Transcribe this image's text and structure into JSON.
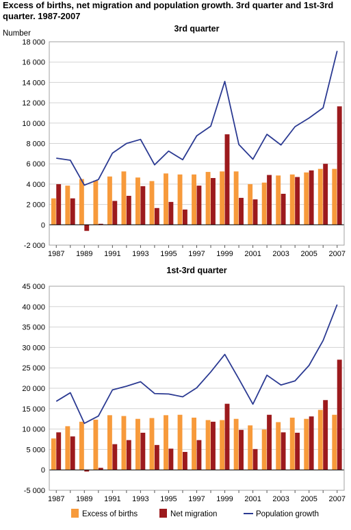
{
  "figure": {
    "title": "Excess of births, net migration and population growth. 3rd quarter and 1st-3rd quarter. 1987-2007",
    "colors": {
      "births": "#f79a3b",
      "migration": "#9c1a1d",
      "growth": "#2b3a92",
      "grid": "#d3d3d3",
      "plot_border": "#a0a0a0"
    }
  },
  "legend": {
    "placement": "bottom",
    "items": [
      {
        "key": "births",
        "label": "Excess of births"
      },
      {
        "key": "migration",
        "label": "Net migration"
      },
      {
        "key": "growth",
        "label": "Population growth"
      }
    ]
  },
  "chart_data": [
    {
      "type": "bar",
      "title": "3rd quarter",
      "ylabel": "Number",
      "ylim": [
        -2000,
        18000
      ],
      "yticks": [
        -2000,
        0,
        2000,
        4000,
        6000,
        8000,
        10000,
        12000,
        14000,
        16000,
        18000
      ],
      "ytick_labels": [
        "-2 000",
        "0",
        "2 000",
        "4 000",
        "6 000",
        "8 000",
        "10 000",
        "12 000",
        "14 000",
        "16 000",
        "18 000"
      ],
      "grid": true,
      "categories": [
        "1987",
        "1988",
        "1989",
        "1990",
        "1991",
        "1992",
        "1993",
        "1994",
        "1995",
        "1996",
        "1997",
        "1998",
        "1999",
        "2000",
        "2001",
        "2002",
        "2003",
        "2004",
        "2005",
        "2006",
        "2007"
      ],
      "xtick_labels": [
        "1987",
        "",
        "1989",
        "",
        "1991",
        "",
        "1993",
        "",
        "1995",
        "",
        "1997",
        "",
        "1999",
        "",
        "2001",
        "",
        "2003",
        "",
        "2005",
        "",
        "2007"
      ],
      "series": [
        {
          "name": "Excess of births",
          "type": "bar",
          "values": [
            2600,
            3850,
            4500,
            4350,
            4750,
            5250,
            4650,
            4300,
            5050,
            4950,
            4950,
            5200,
            5250,
            5250,
            4000,
            4150,
            4850,
            4950,
            5150,
            5500,
            5500
          ]
        },
        {
          "name": "Net migration",
          "type": "bar",
          "values": [
            4000,
            2600,
            -600,
            100,
            2350,
            2850,
            3800,
            1650,
            2250,
            1500,
            3850,
            4600,
            8900,
            2650,
            2500,
            4900,
            3050,
            4700,
            5350,
            6000,
            11650
          ]
        },
        {
          "name": "Population growth",
          "type": "line",
          "values": [
            6550,
            6350,
            3900,
            4450,
            7050,
            8000,
            8400,
            5900,
            7250,
            6400,
            8750,
            9700,
            14100,
            7900,
            6450,
            8900,
            7850,
            9650,
            10500,
            11500,
            17100
          ]
        }
      ]
    },
    {
      "type": "bar",
      "title": "1st-3rd quarter",
      "ylabel": "",
      "ylim": [
        -5000,
        45000
      ],
      "yticks": [
        -5000,
        0,
        5000,
        10000,
        15000,
        20000,
        25000,
        30000,
        35000,
        40000,
        45000
      ],
      "ytick_labels": [
        "-5 000",
        "0",
        "5 000",
        "10 000",
        "15 000",
        "20 000",
        "25 000",
        "30 000",
        "35 000",
        "40 000",
        "45 000"
      ],
      "grid": true,
      "categories": [
        "1987",
        "1988",
        "1989",
        "1990",
        "1991",
        "1992",
        "1993",
        "1994",
        "1995",
        "1996",
        "1997",
        "1998",
        "1999",
        "2000",
        "2001",
        "2002",
        "2003",
        "2004",
        "2005",
        "2006",
        "2007"
      ],
      "xtick_labels": [
        "1987",
        "",
        "1989",
        "",
        "1991",
        "",
        "1993",
        "",
        "1995",
        "",
        "1997",
        "",
        "1999",
        "",
        "2001",
        "",
        "2003",
        "",
        "2005",
        "",
        "2007"
      ],
      "series": [
        {
          "name": "Excess of births",
          "type": "bar",
          "values": [
            7700,
            10700,
            11800,
            12300,
            13400,
            13200,
            12500,
            12700,
            13400,
            13500,
            12800,
            12200,
            12200,
            12500,
            10900,
            9900,
            11700,
            12800,
            12500,
            14700,
            13500
          ]
        },
        {
          "name": "Net migration",
          "type": "bar",
          "values": [
            9200,
            8200,
            -400,
            500,
            6300,
            7300,
            9100,
            6100,
            5200,
            4400,
            7300,
            11800,
            16200,
            9800,
            5100,
            13500,
            9200,
            9100,
            13100,
            17100,
            27000
          ]
        },
        {
          "name": "Population growth",
          "type": "line",
          "values": [
            16800,
            18900,
            11400,
            13200,
            19600,
            20500,
            21600,
            18700,
            18600,
            17900,
            20100,
            24000,
            28300,
            22300,
            16100,
            23200,
            20800,
            21800,
            25600,
            31700,
            40500
          ]
        }
      ]
    }
  ]
}
